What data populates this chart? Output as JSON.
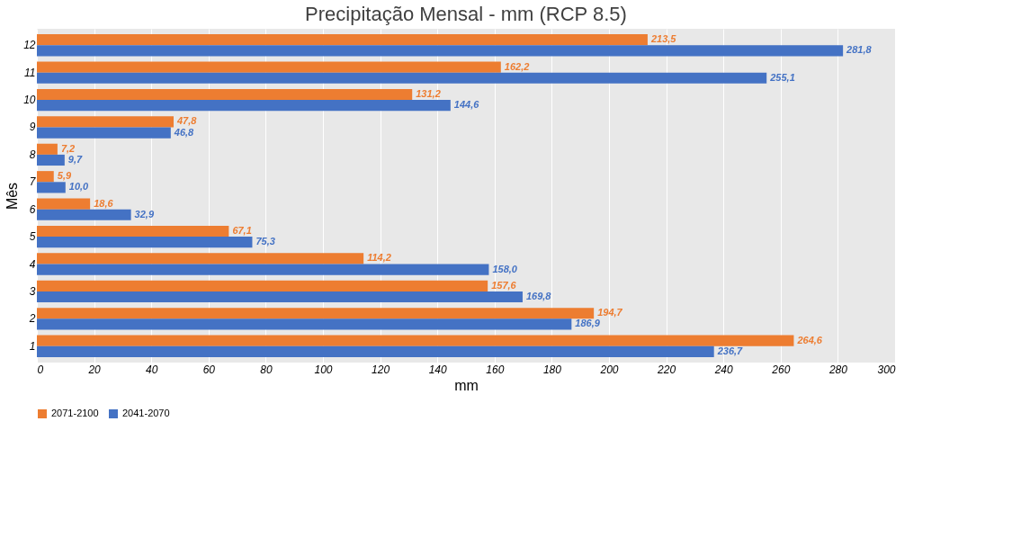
{
  "chart_data": {
    "type": "bar",
    "orientation": "horizontal",
    "title": "Precipitação Mensal - mm (RCP 8.5)",
    "xlabel": "mm",
    "ylabel": "Mês",
    "categories": [
      "12",
      "11",
      "10",
      "9",
      "8",
      "7",
      "6",
      "5",
      "4",
      "3",
      "2",
      "1"
    ],
    "series": [
      {
        "name": "2071-2100",
        "color": "#ed7d31",
        "values": [
          213.5,
          162.2,
          131.2,
          47.8,
          7.2,
          5.9,
          18.6,
          67.1,
          114.2,
          157.6,
          194.7,
          264.6
        ],
        "value_labels": [
          "213,5",
          "162,2",
          "131,2",
          "47,8",
          "7,2",
          "5,9",
          "18,6",
          "67,1",
          "114,2",
          "157,6",
          "194,7",
          "264,6"
        ]
      },
      {
        "name": "2041-2070",
        "color": "#4472c4",
        "values": [
          281.8,
          255.1,
          144.6,
          46.8,
          9.7,
          10.0,
          32.9,
          75.3,
          158.0,
          169.8,
          186.9,
          236.7
        ],
        "value_labels": [
          "281,8",
          "255,1",
          "144,6",
          "46,8",
          "9,7",
          "10,0",
          "32,9",
          "75,3",
          "158,0",
          "169,8",
          "186,9",
          "236,7"
        ]
      }
    ],
    "xlim": [
      0,
      300
    ],
    "xticks": [
      0,
      20,
      40,
      60,
      80,
      100,
      120,
      140,
      160,
      180,
      200,
      220,
      240,
      260,
      280,
      300
    ],
    "grid": "x",
    "legend": "bottom"
  }
}
